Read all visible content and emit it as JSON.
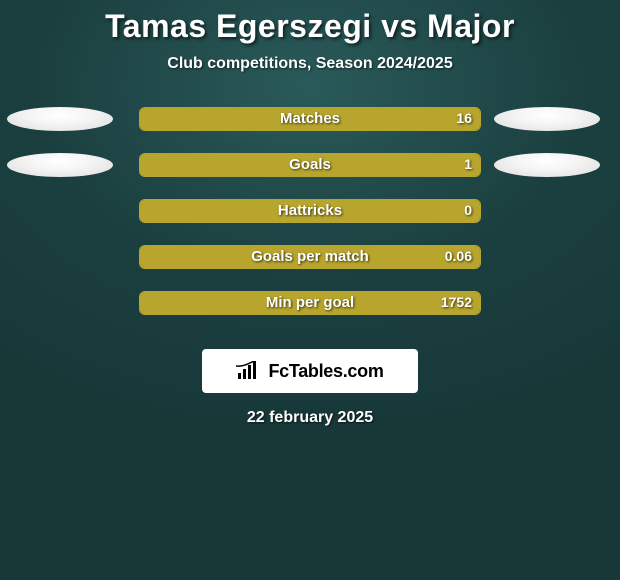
{
  "background_color": "#1b3f3f",
  "title": "Tamas Egerszegi vs Major",
  "title_fontsize": 32,
  "title_color": "#ffffff",
  "subtitle": "Club competitions, Season 2024/2025",
  "subtitle_fontsize": 16,
  "subtitle_color": "#ffffff",
  "ellipse_fill": "#f2f2f2",
  "bar_border_color": "#b7a52d",
  "bar_fill_color": "#b7a52d",
  "bar_empty_color": "transparent",
  "label_color": "#ffffff",
  "label_fontsize": 15,
  "value_color": "#ffffff",
  "value_fontsize": 14,
  "stats": [
    {
      "label": "Matches",
      "value_text": "16",
      "fill_pct": 100,
      "show_left_ellipse": true,
      "show_right_ellipse": true
    },
    {
      "label": "Goals",
      "value_text": "1",
      "fill_pct": 100,
      "show_left_ellipse": true,
      "show_right_ellipse": true
    },
    {
      "label": "Hattricks",
      "value_text": "0",
      "fill_pct": 100,
      "show_left_ellipse": false,
      "show_right_ellipse": false
    },
    {
      "label": "Goals per match",
      "value_text": "0.06",
      "fill_pct": 100,
      "show_left_ellipse": false,
      "show_right_ellipse": false
    },
    {
      "label": "Min per goal",
      "value_text": "1752",
      "fill_pct": 100,
      "show_left_ellipse": false,
      "show_right_ellipse": false
    }
  ],
  "brand": {
    "background": "#ffffff",
    "text": "FcTables.com",
    "text_color": "#000000",
    "icon_color": "#000000"
  },
  "date": "22 february 2025",
  "date_color": "#ffffff"
}
